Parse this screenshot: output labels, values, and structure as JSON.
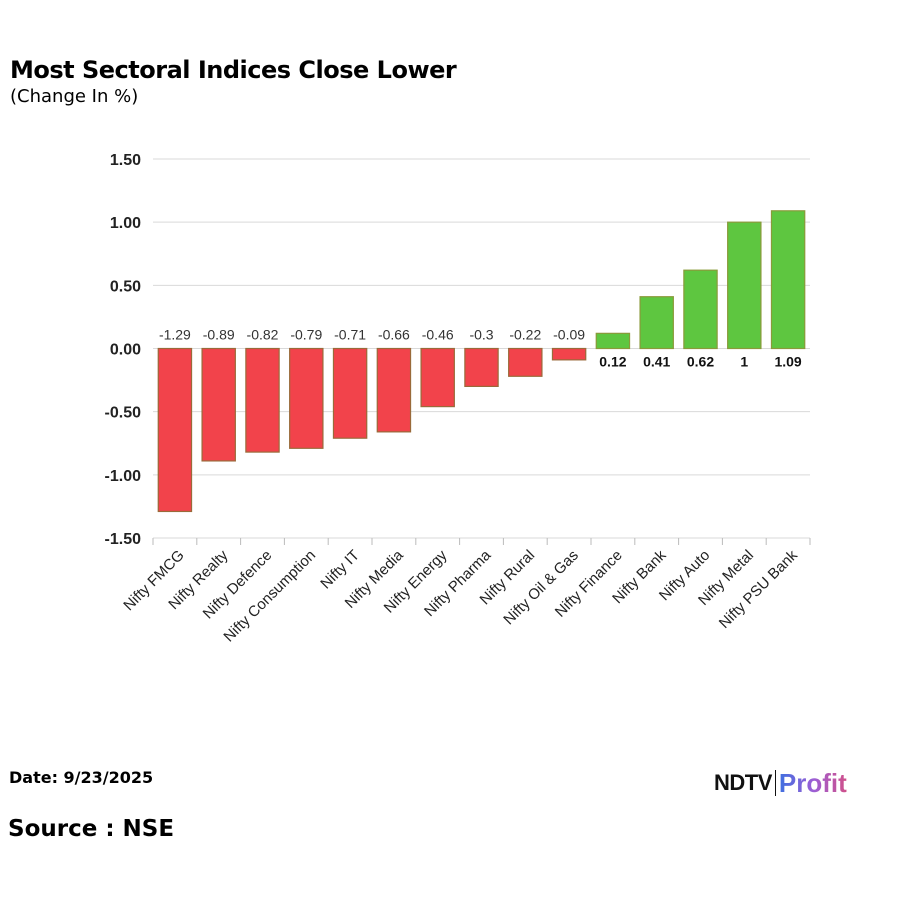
{
  "header": {
    "title": "Most Sectoral Indices Close Lower",
    "subtitle": "(Change In %)"
  },
  "footer": {
    "date": "Date: 9/23/2025",
    "source": "Source : NSE",
    "logo_left": "NDTV",
    "logo_right": "Profit"
  },
  "colors": {
    "negative": "#f2434b",
    "negative_border": "#9a6a3a",
    "positive": "#5ec640",
    "positive_border": "#8a9a3a",
    "grid": "#d9d9d9",
    "text": "#222222"
  },
  "chart_data": {
    "type": "bar",
    "title": "Most Sectoral Indices Close Lower",
    "subtitle": "(Change In %)",
    "xlabel": "",
    "ylabel": "",
    "ylim": [
      -1.5,
      1.5
    ],
    "yticks": [
      "1.50",
      "1.00",
      "0.50",
      "0.00",
      "-0.50",
      "-1.00",
      "-1.50"
    ],
    "ytick_values": [
      1.5,
      1.0,
      0.5,
      0.0,
      -0.5,
      -1.0,
      -1.5
    ],
    "grid": true,
    "legend": "none",
    "categories": [
      "Nifty FMCG",
      "Nifty Realty",
      "Nifty Defence",
      "Nifty Consumption",
      "Nifty IT",
      "Nifty Media",
      "Nifty Energy",
      "Nifty Pharma",
      "Nifty Rural",
      "Nifty Oil & Gas",
      "Nifty Finance",
      "Nifty Bank",
      "Nifty Auto",
      "Nifty Metal",
      "Nifty PSU Bank"
    ],
    "values": [
      -1.29,
      -0.89,
      -0.82,
      -0.79,
      -0.71,
      -0.66,
      -0.46,
      -0.3,
      -0.22,
      -0.09,
      0.12,
      0.41,
      0.62,
      1,
      1.09
    ],
    "labels": [
      "-1.29",
      "-0.89",
      "-0.82",
      "-0.79",
      "-0.71",
      "-0.66",
      "-0.46",
      "-0.3",
      "-0.22",
      "-0.09",
      "0.12",
      "0.41",
      "0.62",
      "1",
      "1.09"
    ]
  }
}
